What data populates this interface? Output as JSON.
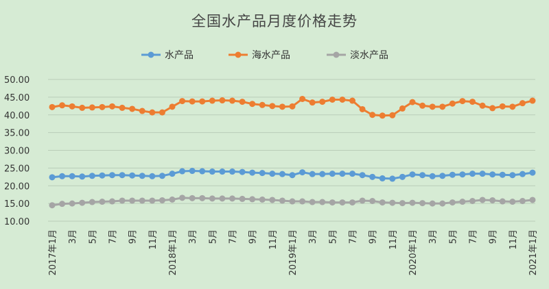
{
  "chart_data": {
    "type": "line",
    "title": "全国水产品月度价格走势",
    "xlabel": "",
    "ylabel": "",
    "ylim": [
      10,
      50
    ],
    "yticks": [
      "50.00",
      "45.00",
      "40.00",
      "35.00",
      "30.00",
      "25.00",
      "20.00",
      "15.00",
      "10.00"
    ],
    "grid": true,
    "legend_position": "top",
    "x_tick_labels": [
      {
        "index": 0,
        "label": "2017年1月"
      },
      {
        "index": 2,
        "label": "3月"
      },
      {
        "index": 4,
        "label": "5月"
      },
      {
        "index": 6,
        "label": "7月"
      },
      {
        "index": 8,
        "label": "9月"
      },
      {
        "index": 10,
        "label": "11月"
      },
      {
        "index": 12,
        "label": "2018年1月"
      },
      {
        "index": 14,
        "label": "3月"
      },
      {
        "index": 16,
        "label": "5月"
      },
      {
        "index": 18,
        "label": "7月"
      },
      {
        "index": 20,
        "label": "9月"
      },
      {
        "index": 22,
        "label": "11月"
      },
      {
        "index": 24,
        "label": "2019年1月"
      },
      {
        "index": 26,
        "label": "3月"
      },
      {
        "index": 28,
        "label": "5月"
      },
      {
        "index": 30,
        "label": "7月"
      },
      {
        "index": 32,
        "label": "9月"
      },
      {
        "index": 34,
        "label": "11月"
      },
      {
        "index": 36,
        "label": "2020年1月"
      },
      {
        "index": 38,
        "label": "3月"
      },
      {
        "index": 40,
        "label": "5月"
      },
      {
        "index": 42,
        "label": "7月"
      },
      {
        "index": 44,
        "label": "9月"
      },
      {
        "index": 46,
        "label": "11月"
      },
      {
        "index": 48,
        "label": "2021年1月"
      }
    ],
    "series": [
      {
        "name": "水产品",
        "color": "#5b9bd5",
        "values": [
          22.4,
          22.7,
          22.7,
          22.6,
          22.8,
          22.9,
          23.0,
          23.0,
          22.9,
          22.8,
          22.7,
          22.8,
          23.4,
          24.1,
          24.2,
          24.1,
          24.0,
          24.0,
          24.0,
          23.9,
          23.7,
          23.6,
          23.4,
          23.3,
          23.0,
          23.8,
          23.3,
          23.3,
          23.4,
          23.4,
          23.4,
          23.0,
          22.5,
          22.1,
          22.0,
          22.5,
          23.2,
          23.0,
          22.7,
          22.8,
          23.1,
          23.2,
          23.4,
          23.4,
          23.2,
          23.1,
          23.0,
          23.3,
          23.7
        ]
      },
      {
        "name": "海水产品",
        "color": "#ed7d31",
        "values": [
          42.2,
          42.7,
          42.4,
          42.0,
          42.1,
          42.2,
          42.4,
          42.0,
          41.7,
          41.1,
          40.7,
          40.7,
          42.3,
          43.9,
          43.8,
          43.8,
          44.0,
          44.1,
          44.0,
          43.7,
          43.1,
          42.8,
          42.5,
          42.3,
          42.4,
          44.5,
          43.5,
          43.7,
          44.3,
          44.3,
          44.0,
          41.6,
          40.0,
          39.8,
          39.9,
          41.8,
          43.6,
          42.6,
          42.3,
          42.3,
          43.2,
          43.9,
          43.7,
          42.6,
          41.9,
          42.4,
          42.3,
          43.3,
          44.0
        ]
      },
      {
        "name": "淡水产品",
        "color": "#a5a5a5",
        "values": [
          14.5,
          14.9,
          15.0,
          15.2,
          15.4,
          15.5,
          15.6,
          15.8,
          15.8,
          15.8,
          15.8,
          15.9,
          16.1,
          16.6,
          16.5,
          16.5,
          16.4,
          16.4,
          16.4,
          16.3,
          16.2,
          16.1,
          16.0,
          15.8,
          15.6,
          15.6,
          15.4,
          15.4,
          15.3,
          15.3,
          15.3,
          15.8,
          15.7,
          15.3,
          15.2,
          15.1,
          15.2,
          15.1,
          15.0,
          15.0,
          15.3,
          15.5,
          15.7,
          16.0,
          15.9,
          15.6,
          15.5,
          15.7,
          16.0
        ]
      }
    ]
  }
}
